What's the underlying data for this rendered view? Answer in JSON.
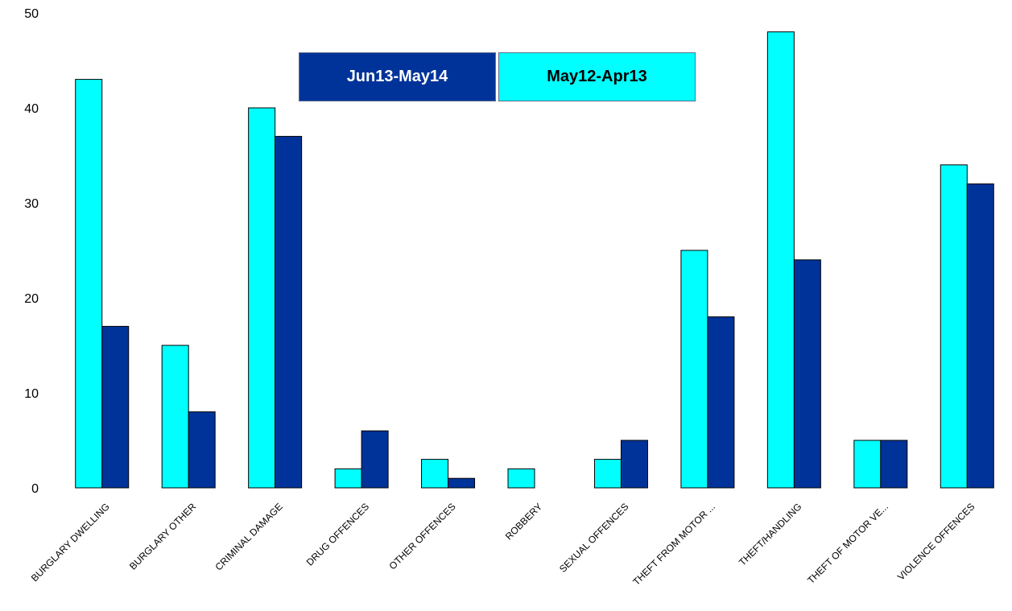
{
  "chart_data": {
    "type": "bar",
    "categories": [
      "BURGLARY DWELLING",
      "BURGLARY OTHER",
      "CRIMINAL DAMAGE",
      "DRUG OFFENCES",
      "OTHER OFFENCES",
      "ROBBERY",
      "SEXUAL OFFENCES",
      "THEFT FROM MOTOR ...",
      "THEFT/HANDLING",
      "THEFT OF MOTOR VE...",
      "VIOLENCE OFFENCES"
    ],
    "series": [
      {
        "name": "May12-Apr13",
        "color": "#00FFFF",
        "values": [
          43,
          15,
          40,
          2,
          3,
          2,
          3,
          25,
          48,
          5,
          34
        ]
      },
      {
        "name": "Jun13-May14",
        "color": "#003399",
        "values": [
          17,
          8,
          37,
          6,
          1,
          0,
          5,
          18,
          24,
          5,
          32
        ]
      }
    ],
    "ylim": [
      0,
      50
    ],
    "yticks": [
      "0",
      "10",
      "20",
      "30",
      "40",
      "50"
    ],
    "grid": false,
    "legend_placement": "top-center"
  },
  "legend": {
    "item_a": {
      "label": "Jun13-May14",
      "bg": "#003399",
      "fg": "#ffffff"
    },
    "item_b": {
      "label": "May12-Apr13",
      "bg": "#00FFFF",
      "fg": "#000000"
    }
  }
}
